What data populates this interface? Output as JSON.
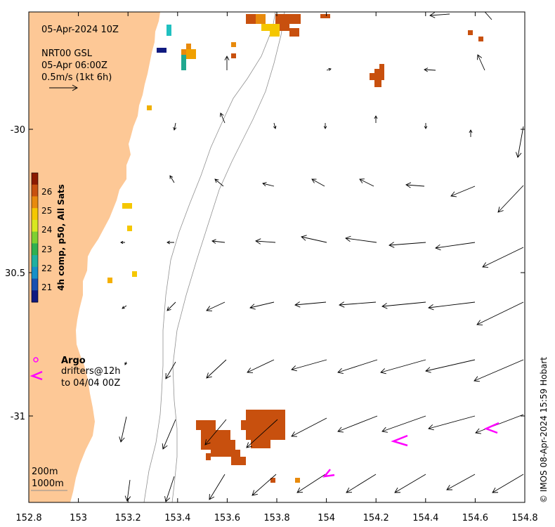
{
  "title": {
    "date": "05-Apr-2024 10Z",
    "product": "NRT00 GSL",
    "valid": "05-Apr 06:00Z",
    "scale_label": "0.5m/s (1kt 6h)"
  },
  "colorbar": {
    "label": "4h comp, p50, All Sats",
    "ticks": [
      "26",
      "25",
      "24",
      "23",
      "22",
      "21"
    ],
    "colors_top_to_bottom": [
      "#8b1a00",
      "#c8500e",
      "#e88a0c",
      "#f5c700",
      "#d8e820",
      "#7fd030",
      "#30b050",
      "#20b0a0",
      "#1890c8",
      "#1850b0",
      "#101a80"
    ]
  },
  "legend": {
    "argo_label": "Argo",
    "drifters_line1": "drifters@12h",
    "drifters_line2": "to 04/04 00Z",
    "argo_color": "#ff00ff"
  },
  "depth": {
    "label_200": "200m",
    "label_1000": "1000m"
  },
  "axes": {
    "x_ticks": [
      "152.8",
      "153",
      "153.2",
      "153.4",
      "153.6",
      "153.8",
      "154",
      "154.2",
      "154.4",
      "154.6",
      "154.8"
    ],
    "y_ticks": [
      "-30",
      "30.5",
      "-31"
    ]
  },
  "credit": "© IMOS 08-Apr-2024 15:59 Hobart",
  "colors": {
    "land": "#fdc896",
    "arrow": "#000000",
    "isobath": "#909090",
    "drifter": "#ff00ff"
  }
}
